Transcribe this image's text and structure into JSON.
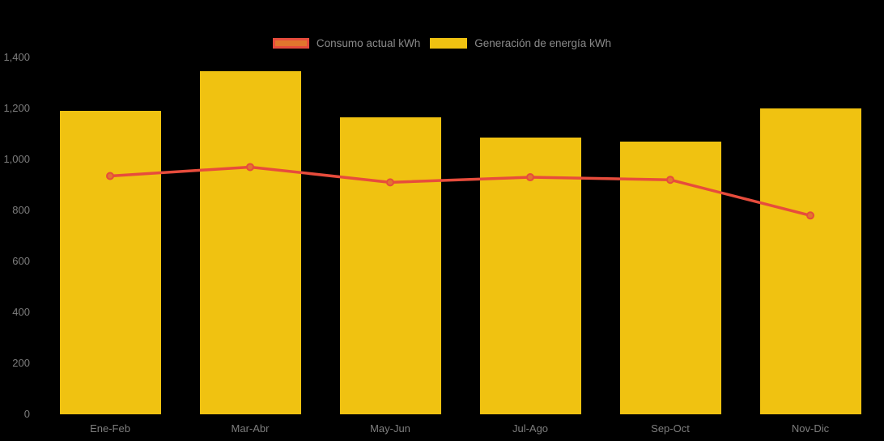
{
  "colors": {
    "background": "#000000",
    "bar": "#F0C211",
    "line": "#E74C3C",
    "marker_fill": "#E2762D",
    "axis_text": "#7E7E7E",
    "legend_text": "#8A8A8A"
  },
  "legend": {
    "items": [
      {
        "label": "Consumo actual kWh",
        "series": "line"
      },
      {
        "label": "Generación de energía kWh",
        "series": "bar"
      }
    ]
  },
  "chart_data": {
    "type": "bar",
    "subtype": "bar-with-line-overlay",
    "title": "",
    "xlabel": "",
    "ylabel": "",
    "categories": [
      "Ene-Feb",
      "Mar-Abr",
      "May-Jun",
      "Jul-Ago",
      "Sep-Oct",
      "Nov-Dic"
    ],
    "series": [
      {
        "name": "Generación de energía kWh",
        "type": "bar",
        "color": "#F0C211",
        "values": [
          1190,
          1345,
          1165,
          1085,
          1070,
          1200
        ]
      },
      {
        "name": "Consumo actual kWh",
        "type": "line",
        "color": "#E74C3C",
        "marker_fill": "#E2762D",
        "values": [
          935,
          970,
          910,
          930,
          920,
          780
        ]
      }
    ],
    "ylim": [
      0,
      1400
    ],
    "ytick_interval": 200,
    "yticks": [
      {
        "value": 0,
        "label": "0"
      },
      {
        "value": 200,
        "label": "200"
      },
      {
        "value": 400,
        "label": "400"
      },
      {
        "value": 600,
        "label": "600"
      },
      {
        "value": 800,
        "label": "800"
      },
      {
        "value": 1000,
        "label": "1,000"
      },
      {
        "value": 1200,
        "label": "1,200"
      },
      {
        "value": 1400,
        "label": "1,400"
      }
    ],
    "grid": false,
    "legend_position": "top-center"
  }
}
